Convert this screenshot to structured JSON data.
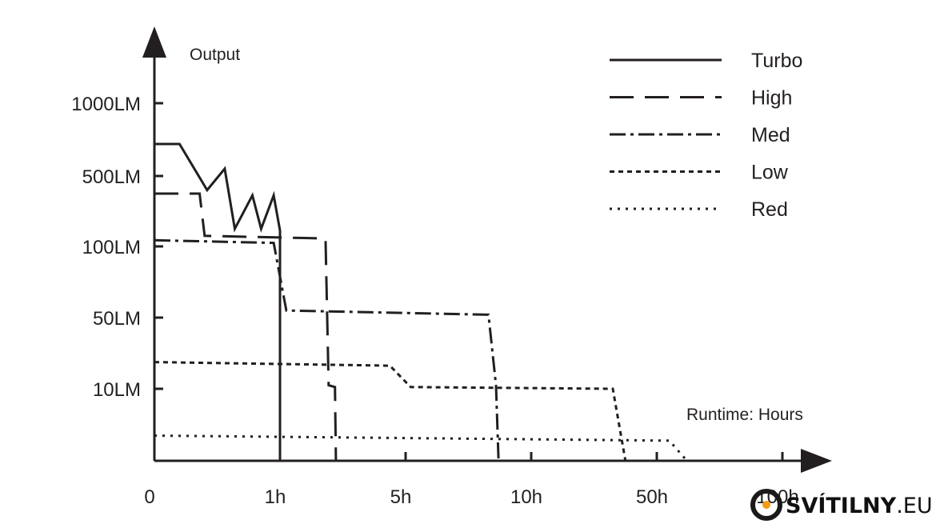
{
  "chart_data": {
    "type": "line",
    "ylabel": "Output",
    "xlabel": "Runtime: Hours",
    "y_ticks": [
      "1000LM",
      "500LM",
      "100LM",
      "50LM",
      "10LM"
    ],
    "x_ticks": [
      "0",
      "1h",
      "5h",
      "10h",
      "50h",
      "100h"
    ],
    "grid": false,
    "legend_position": "top-right",
    "series": [
      {
        "name": "Turbo",
        "style": "solid",
        "points": [
          [
            0,
            720
          ],
          [
            0.2,
            720
          ],
          [
            0.42,
            420
          ],
          [
            0.56,
            550
          ],
          [
            0.64,
            200
          ],
          [
            0.78,
            390
          ],
          [
            0.85,
            200
          ],
          [
            0.95,
            390
          ],
          [
            1.0,
            190
          ],
          [
            1.0,
            0
          ]
        ]
      },
      {
        "name": "High",
        "style": "dashed",
        "points": [
          [
            0,
            400
          ],
          [
            0.36,
            400
          ],
          [
            0.4,
            160
          ],
          [
            2.45,
            145
          ],
          [
            2.55,
            12
          ],
          [
            2.75,
            11
          ],
          [
            2.78,
            0
          ]
        ]
      },
      {
        "name": "Med",
        "style": "dashdot",
        "points": [
          [
            0,
            135
          ],
          [
            0.95,
            120
          ],
          [
            1.2,
            55
          ],
          [
            8.3,
            52
          ],
          [
            8.6,
            12
          ],
          [
            8.7,
            0
          ]
        ]
      },
      {
        "name": "Low",
        "style": "dotdash-short",
        "points": [
          [
            0,
            25
          ],
          [
            4.5,
            23
          ],
          [
            5.2,
            11
          ],
          [
            36,
            10
          ],
          [
            40,
            0
          ]
        ]
      },
      {
        "name": "Red",
        "style": "dotted",
        "points": [
          [
            0,
            3.5
          ],
          [
            55,
            2.8
          ],
          [
            62,
            0
          ]
        ]
      }
    ],
    "colors": {
      "ink": "#231f20"
    }
  },
  "watermark": {
    "text_bold": "SVÍTILNY",
    "text_light": ".EU",
    "ring_color": "#1a1a1a",
    "dot_color": "#f39c12"
  }
}
